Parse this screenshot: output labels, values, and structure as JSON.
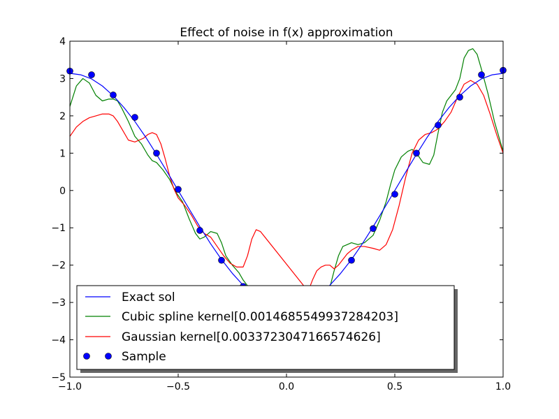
{
  "chart_data": {
    "type": "line",
    "title": "Effect of noise in f(x) approximation",
    "xlabel": "",
    "ylabel": "",
    "xlim": [
      -1.0,
      1.0
    ],
    "ylim": [
      -5,
      4
    ],
    "xticks": [
      -1.0,
      -0.5,
      0.0,
      0.5,
      1.0
    ],
    "xtick_labels": [
      "−1.0",
      "−0.5",
      "0.0",
      "0.5",
      "1.0"
    ],
    "yticks": [
      -5,
      -4,
      -3,
      -2,
      -1,
      0,
      1,
      2,
      3,
      4
    ],
    "ytick_labels": [
      "−5",
      "−4",
      "−3",
      "−2",
      "−1",
      "0",
      "1",
      "2",
      "3",
      "4"
    ],
    "grid": false,
    "legend_position": "lower-left",
    "series": [
      {
        "name": "Exact sol",
        "style": "line",
        "color": "#0000ff",
        "x": [
          -1.0,
          -0.95,
          -0.9,
          -0.85,
          -0.8,
          -0.75,
          -0.7,
          -0.65,
          -0.6,
          -0.55,
          -0.5,
          -0.45,
          -0.4,
          -0.35,
          -0.3,
          -0.25,
          -0.2,
          -0.15,
          -0.1,
          -0.05,
          0.0,
          0.05,
          0.1,
          0.15,
          0.2,
          0.25,
          0.3,
          0.35,
          0.4,
          0.45,
          0.5,
          0.55,
          0.6,
          0.65,
          0.7,
          0.75,
          0.8,
          0.85,
          0.9,
          0.95,
          1.0
        ],
        "y": [
          3.14,
          3.1,
          2.99,
          2.8,
          2.54,
          2.22,
          1.85,
          1.43,
          0.97,
          0.49,
          0.0,
          -0.49,
          -0.97,
          -1.43,
          -1.85,
          -2.22,
          -2.54,
          -2.8,
          -2.99,
          -3.1,
          -3.14,
          -3.1,
          -2.99,
          -2.8,
          -2.54,
          -2.22,
          -1.85,
          -1.43,
          -0.97,
          -0.49,
          0.0,
          0.49,
          0.97,
          1.43,
          1.85,
          2.22,
          2.54,
          2.8,
          2.99,
          3.1,
          3.14
        ]
      },
      {
        "name": "Cubic spline kernel[0.0014685549937284203]",
        "style": "line",
        "color": "#008000",
        "x": [
          -1.0,
          -0.97,
          -0.94,
          -0.91,
          -0.88,
          -0.85,
          -0.82,
          -0.8,
          -0.78,
          -0.76,
          -0.73,
          -0.7,
          -0.67,
          -0.64,
          -0.62,
          -0.6,
          -0.57,
          -0.54,
          -0.51,
          -0.48,
          -0.45,
          -0.42,
          -0.4,
          -0.38,
          -0.35,
          -0.32,
          -0.3,
          -0.28,
          -0.25,
          -0.22,
          -0.2,
          -0.18,
          -0.16,
          0.2,
          0.22,
          0.24,
          0.26,
          0.28,
          0.3,
          0.33,
          0.36,
          0.4,
          0.43,
          0.46,
          0.48,
          0.5,
          0.53,
          0.56,
          0.58,
          0.6,
          0.63,
          0.66,
          0.68,
          0.7,
          0.72,
          0.74,
          0.76,
          0.78,
          0.8,
          0.82,
          0.84,
          0.86,
          0.88,
          0.9,
          0.93,
          0.96,
          1.0
        ],
        "y": [
          2.25,
          2.8,
          3.0,
          2.88,
          2.55,
          2.4,
          2.45,
          2.45,
          2.4,
          2.2,
          1.85,
          1.45,
          1.25,
          0.95,
          0.8,
          0.75,
          0.55,
          0.3,
          -0.05,
          -0.3,
          -0.75,
          -1.15,
          -1.3,
          -1.25,
          -1.1,
          -1.15,
          -1.4,
          -1.75,
          -2.0,
          -2.2,
          -2.4,
          -2.55,
          -2.65,
          -2.6,
          -2.15,
          -1.75,
          -1.5,
          -1.45,
          -1.4,
          -1.45,
          -1.4,
          -1.2,
          -0.8,
          -0.3,
          0.15,
          0.55,
          0.9,
          1.05,
          1.1,
          1.0,
          0.75,
          0.7,
          0.95,
          1.55,
          2.1,
          2.4,
          2.55,
          2.7,
          3.0,
          3.55,
          3.75,
          3.8,
          3.65,
          3.25,
          2.6,
          1.85,
          1.05
        ]
      },
      {
        "name": "Gaussian kernel[0.0033723047166574626]",
        "style": "line",
        "color": "#ff0000",
        "x": [
          -1.0,
          -0.97,
          -0.94,
          -0.91,
          -0.88,
          -0.85,
          -0.82,
          -0.8,
          -0.78,
          -0.76,
          -0.73,
          -0.7,
          -0.68,
          -0.66,
          -0.64,
          -0.62,
          -0.6,
          -0.58,
          -0.56,
          -0.54,
          -0.52,
          -0.5,
          -0.47,
          -0.44,
          -0.41,
          -0.38,
          -0.35,
          -0.32,
          -0.29,
          -0.26,
          -0.23,
          -0.2,
          -0.18,
          -0.16,
          -0.14,
          -0.12,
          0.1,
          0.12,
          0.14,
          0.16,
          0.18,
          0.2,
          0.22,
          0.24,
          0.26,
          0.28,
          0.3,
          0.33,
          0.36,
          0.4,
          0.43,
          0.46,
          0.49,
          0.52,
          0.55,
          0.58,
          0.61,
          0.64,
          0.67,
          0.7,
          0.73,
          0.76,
          0.79,
          0.82,
          0.85,
          0.88,
          0.91,
          0.94,
          0.97,
          1.0
        ],
        "y": [
          1.45,
          1.7,
          1.85,
          1.95,
          2.0,
          2.05,
          2.05,
          2.0,
          1.85,
          1.65,
          1.35,
          1.3,
          1.35,
          1.4,
          1.5,
          1.55,
          1.5,
          1.25,
          0.85,
          0.4,
          0.05,
          -0.2,
          -0.4,
          -0.65,
          -0.95,
          -1.15,
          -1.25,
          -1.5,
          -1.75,
          -1.95,
          -2.05,
          -2.05,
          -1.75,
          -1.3,
          -1.05,
          -1.1,
          -2.7,
          -2.4,
          -2.15,
          -2.05,
          -2.0,
          -2.0,
          -2.1,
          -2.0,
          -1.85,
          -1.7,
          -1.6,
          -1.5,
          -1.5,
          -1.55,
          -1.6,
          -1.45,
          -1.05,
          -0.4,
          0.35,
          1.0,
          1.35,
          1.5,
          1.55,
          1.65,
          1.85,
          2.1,
          2.5,
          2.85,
          2.95,
          2.85,
          2.55,
          2.05,
          1.5,
          1.0
        ]
      },
      {
        "name": "Sample",
        "style": "markers",
        "color": "#0000ff",
        "x": [
          -1.0,
          -0.9,
          -0.8,
          -0.7,
          -0.6,
          -0.5,
          -0.4,
          -0.3,
          -0.2,
          0.3,
          0.4,
          0.5,
          0.6,
          0.7,
          0.8,
          0.9,
          1.0
        ],
        "y": [
          3.2,
          3.1,
          2.56,
          1.96,
          1.0,
          0.03,
          -1.07,
          -1.87,
          -2.57,
          -1.87,
          -1.02,
          -0.1,
          1.0,
          1.75,
          2.5,
          3.1,
          3.22
        ]
      }
    ]
  }
}
